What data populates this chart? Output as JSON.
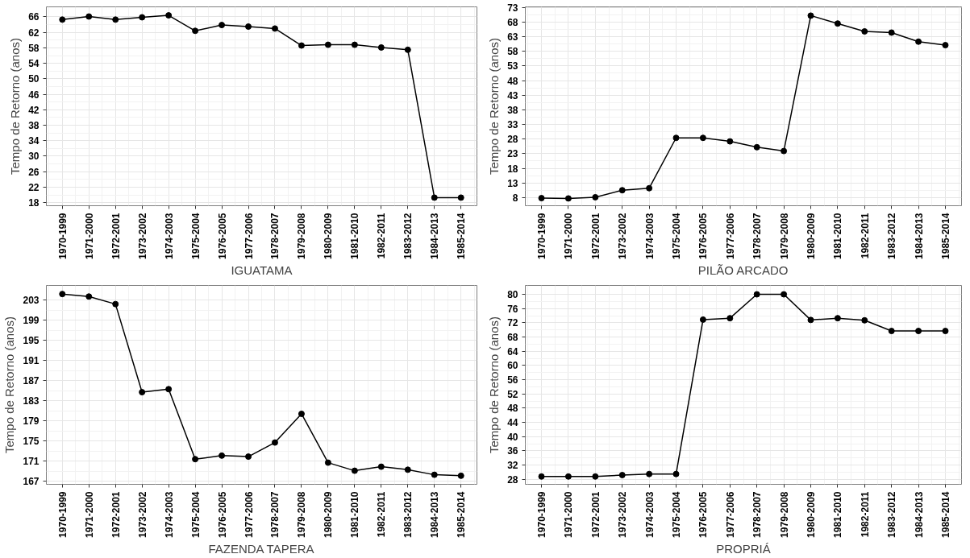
{
  "chart_data": [
    {
      "type": "line",
      "xlabel": "IGUATAMA",
      "ylabel": "Tempo de Retorno (anos)",
      "categories": [
        "1970-1999",
        "1971-2000",
        "1972-2001",
        "1973-2002",
        "1974-2003",
        "1975-2004",
        "1976-2005",
        "1977-2006",
        "1978-2007",
        "1979-2008",
        "1980-2009",
        "1981-2010",
        "1982-2011",
        "1983-2012",
        "1984-2013",
        "1985-2014"
      ],
      "color": "#000000",
      "marker": "circle",
      "grid": true,
      "ylim": [
        17.2,
        68.6
      ],
      "yticks": [
        18,
        22,
        26,
        30,
        34,
        38,
        42,
        46,
        50,
        54,
        58,
        62,
        66
      ],
      "values": [
        65.3,
        66.1,
        65.3,
        65.9,
        66.4,
        62.4,
        63.9,
        63.5,
        63.0,
        58.6,
        58.8,
        58.8,
        58.1,
        57.5,
        19.3,
        19.3
      ]
    },
    {
      "type": "line",
      "xlabel": "PILÃO ARCADO",
      "ylabel": "Tempo de Retorno (anos)",
      "categories": [
        "1970-1999",
        "1971-2000",
        "1972-2001",
        "1973-2002",
        "1974-2003",
        "1975-2004",
        "1976-2005",
        "1977-2006",
        "1978-2007",
        "1979-2008",
        "1980-2009",
        "1981-2010",
        "1982-2011",
        "1983-2012",
        "1984-2013",
        "1985-2014"
      ],
      "color": "#000000",
      "marker": "circle",
      "grid": true,
      "ylim": [
        5.2,
        73.2
      ],
      "yticks": [
        8,
        13,
        18,
        23,
        28,
        33,
        38,
        43,
        48,
        53,
        58,
        63,
        68,
        73
      ],
      "values": [
        7.8,
        7.7,
        8.1,
        10.5,
        11.2,
        28.4,
        28.4,
        27.2,
        25.2,
        23.9,
        70.2,
        67.5,
        64.8,
        64.4,
        61.3,
        60.1
      ]
    },
    {
      "type": "line",
      "xlabel": "FAZENDA TAPERA",
      "ylabel": "Tempo de Retorno (anos)",
      "categories": [
        "1970-1999",
        "1971-2000",
        "1972-2001",
        "1973-2002",
        "1974-2003",
        "1975-2004",
        "1976-2005",
        "1977-2006",
        "1978-2007",
        "1979-2008",
        "1980-2009",
        "1981-2010",
        "1982-2011",
        "1983-2012",
        "1984-2013",
        "1985-2014"
      ],
      "color": "#000000",
      "marker": "circle",
      "grid": true,
      "ylim": [
        166.4,
        205.9
      ],
      "yticks": [
        167,
        171,
        175,
        179,
        183,
        187,
        191,
        195,
        199,
        203
      ],
      "values": [
        204.2,
        203.7,
        202.2,
        184.7,
        185.3,
        171.4,
        172.1,
        171.9,
        174.7,
        180.4,
        170.7,
        169.1,
        169.9,
        169.3,
        168.3,
        168.1
      ]
    },
    {
      "type": "line",
      "xlabel": "PROPRIÁ",
      "ylabel": "Tempo de Retorno (anos)",
      "categories": [
        "1970-1999",
        "1971-2000",
        "1972-2001",
        "1973-2002",
        "1974-2003",
        "1975-2004",
        "1976-2005",
        "1977-2006",
        "1978-2007",
        "1979-2008",
        "1980-2009",
        "1981-2010",
        "1982-2011",
        "1983-2012",
        "1984-2013",
        "1985-2014"
      ],
      "color": "#000000",
      "marker": "circle",
      "grid": true,
      "ylim": [
        26.6,
        82.5
      ],
      "yticks": [
        28,
        32,
        36,
        40,
        44,
        48,
        52,
        56,
        60,
        64,
        68,
        72,
        76,
        80
      ],
      "values": [
        28.8,
        28.8,
        28.8,
        29.2,
        29.5,
        29.5,
        72.9,
        73.3,
        80.0,
        80.0,
        72.8,
        73.3,
        72.7,
        69.7,
        69.7,
        69.7
      ]
    }
  ]
}
